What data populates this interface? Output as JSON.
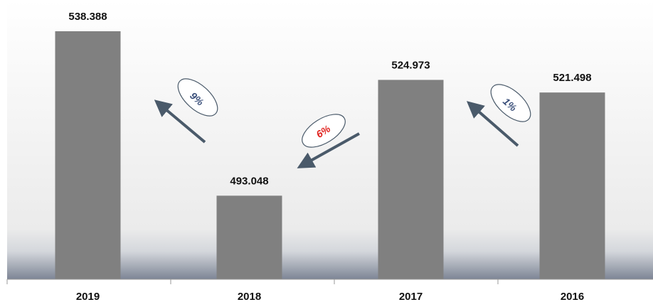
{
  "chart_data": {
    "type": "bar",
    "categories": [
      "2019",
      "2018",
      "2017",
      "2016"
    ],
    "values": [
      538.388,
      493.048,
      524.973,
      521.498
    ],
    "color": "#808080",
    "ylim": [
      470,
      547
    ],
    "annotations": [
      {
        "text": "9%",
        "color": "#3a4f7a"
      },
      {
        "text": "6%",
        "color": "#e0201c"
      },
      {
        "text": "1%",
        "color": "#3a4f7a"
      }
    ]
  }
}
